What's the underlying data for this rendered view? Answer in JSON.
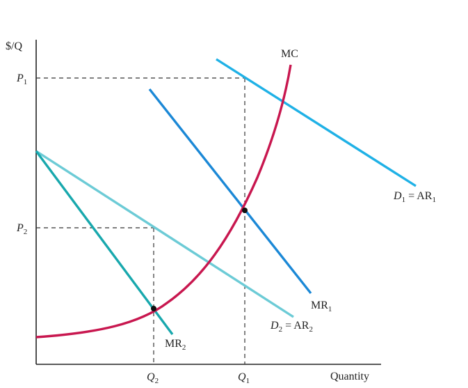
{
  "diagram": {
    "y_axis_label": "$/Q",
    "x_axis_label": "Quantity",
    "price_labels": [
      {
        "id": "p1",
        "letter": "P",
        "sub": "1"
      },
      {
        "id": "p2",
        "letter": "P",
        "sub": "2"
      }
    ],
    "quantity_labels": [
      {
        "id": "q2",
        "letter": "Q",
        "sub": "2"
      },
      {
        "id": "q1",
        "letter": "Q",
        "sub": "1"
      }
    ],
    "curves": {
      "mc": {
        "label": "MC",
        "color": "#c8174f"
      },
      "d1": {
        "label_main": "D",
        "label_sub": "1",
        "label_rest": " = AR",
        "label_sub2": "1",
        "color": "#1fb1e6"
      },
      "mr1": {
        "label_main": "MR",
        "label_sub": "1",
        "color": "#1b88d6"
      },
      "d2": {
        "label_main": "D",
        "label_sub": "2",
        "label_rest": " = AR",
        "label_sub2": "2",
        "color": "#6ccbd6"
      },
      "mr2": {
        "label_main": "MR",
        "label_sub": "2",
        "color": "#18a8ad"
      }
    },
    "colors": {
      "axis": "#222222",
      "guide": "#333333"
    }
  }
}
